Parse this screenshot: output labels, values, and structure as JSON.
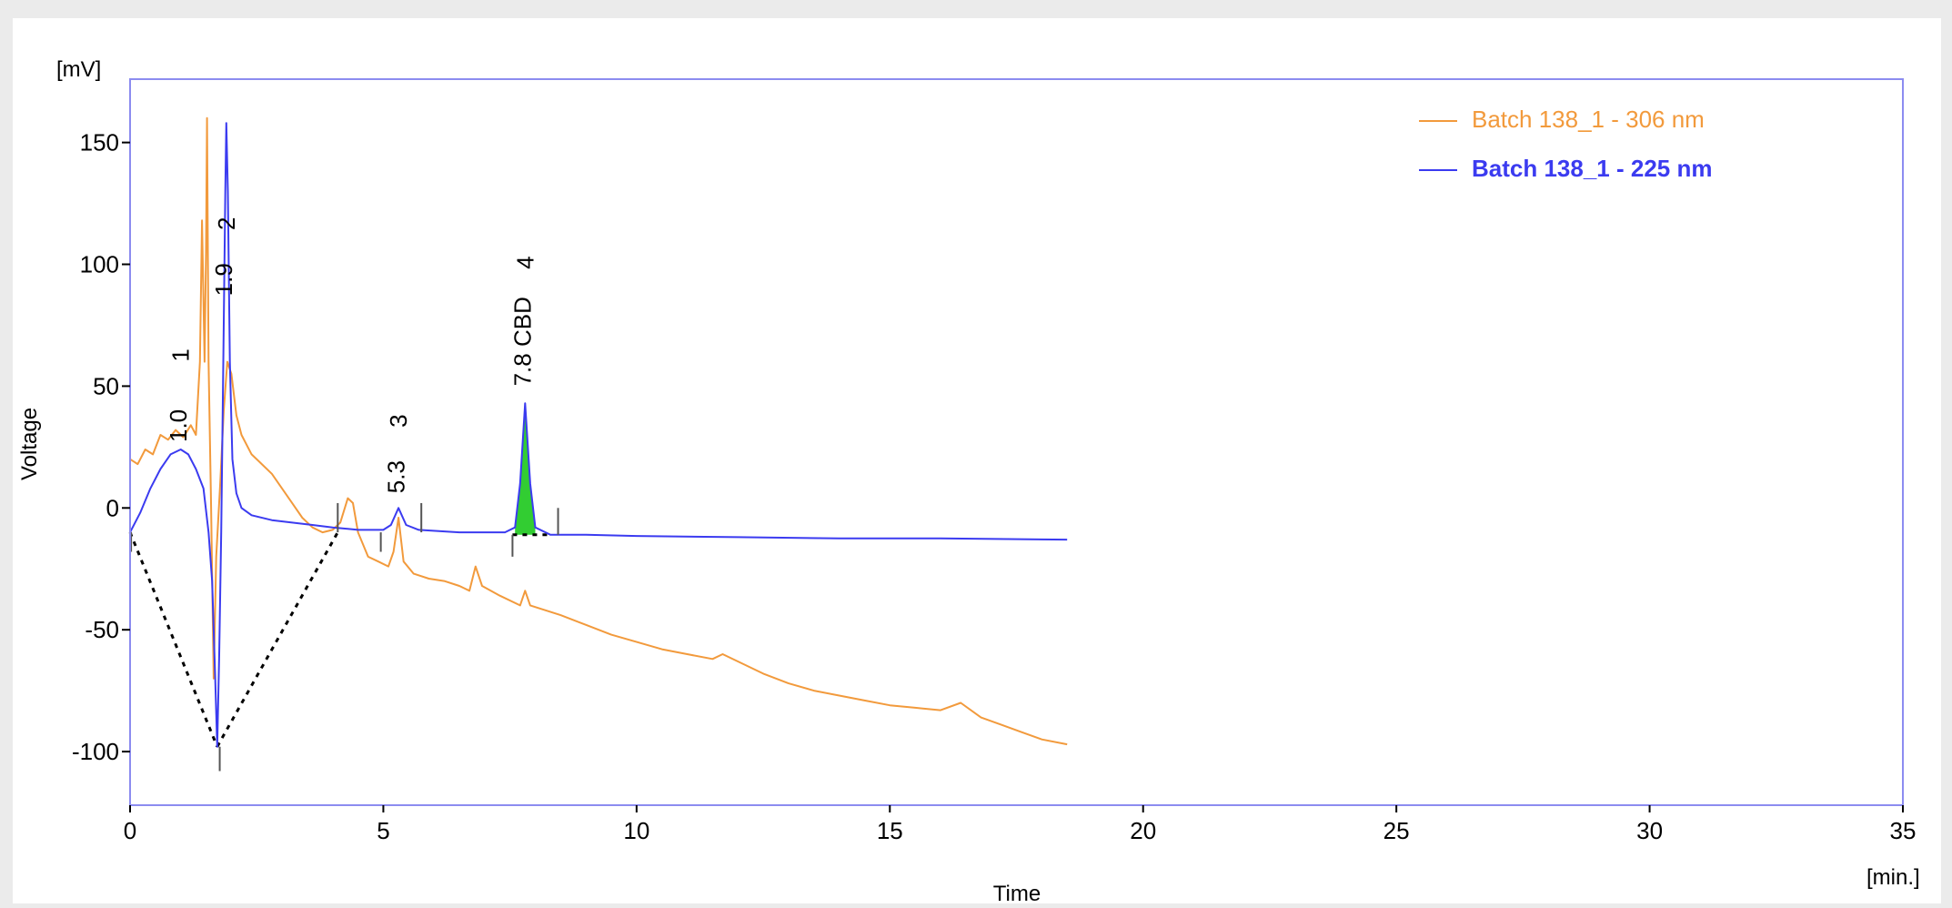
{
  "chart_data": {
    "type": "line",
    "title": "",
    "xlabel": "Time",
    "ylabel": "Voltage",
    "x_unit": "[min.]",
    "y_unit": "[mV]",
    "xlim": [
      0,
      35
    ],
    "ylim": [
      -122,
      176
    ],
    "x_ticks": [
      0,
      5,
      10,
      15,
      20,
      25,
      30,
      35
    ],
    "y_ticks": [
      -100,
      -50,
      0,
      50,
      100,
      150
    ],
    "grid": false,
    "legend_position": "top-right",
    "colors": {
      "plot_border": "#8c8cf0",
      "series_306": "#f29a3c",
      "series_225": "#3b3bf0",
      "peak_fill": "#32cd32",
      "baseline": "#000000"
    },
    "series": [
      {
        "name": "Batch 138_1 - 306 nm",
        "color": "#f29a3c",
        "points": [
          [
            0.0,
            20
          ],
          [
            0.15,
            18
          ],
          [
            0.3,
            24
          ],
          [
            0.45,
            22
          ],
          [
            0.6,
            30
          ],
          [
            0.75,
            28
          ],
          [
            0.9,
            32
          ],
          [
            1.05,
            29
          ],
          [
            1.2,
            34
          ],
          [
            1.3,
            30
          ],
          [
            1.38,
            60
          ],
          [
            1.42,
            118
          ],
          [
            1.47,
            60
          ],
          [
            1.5,
            105
          ],
          [
            1.52,
            160
          ],
          [
            1.55,
            60
          ],
          [
            1.6,
            0
          ],
          [
            1.65,
            -70
          ],
          [
            1.7,
            -20
          ],
          [
            1.78,
            10
          ],
          [
            1.85,
            40
          ],
          [
            1.92,
            60
          ],
          [
            2.0,
            55
          ],
          [
            2.1,
            38
          ],
          [
            2.2,
            30
          ],
          [
            2.4,
            22
          ],
          [
            2.6,
            18
          ],
          [
            2.8,
            14
          ],
          [
            3.0,
            8
          ],
          [
            3.2,
            2
          ],
          [
            3.4,
            -4
          ],
          [
            3.6,
            -8
          ],
          [
            3.8,
            -10
          ],
          [
            4.0,
            -9
          ],
          [
            4.15,
            -6
          ],
          [
            4.3,
            4
          ],
          [
            4.4,
            2
          ],
          [
            4.5,
            -10
          ],
          [
            4.7,
            -20
          ],
          [
            4.9,
            -22
          ],
          [
            5.1,
            -24
          ],
          [
            5.2,
            -18
          ],
          [
            5.3,
            -4
          ],
          [
            5.4,
            -22
          ],
          [
            5.6,
            -27
          ],
          [
            5.9,
            -29
          ],
          [
            6.2,
            -30
          ],
          [
            6.5,
            -32
          ],
          [
            6.7,
            -34
          ],
          [
            6.82,
            -24
          ],
          [
            6.95,
            -32
          ],
          [
            7.3,
            -36
          ],
          [
            7.7,
            -40
          ],
          [
            7.8,
            -34
          ],
          [
            7.9,
            -40
          ],
          [
            8.5,
            -44
          ],
          [
            9.0,
            -48
          ],
          [
            9.5,
            -52
          ],
          [
            10.0,
            -55
          ],
          [
            10.5,
            -58
          ],
          [
            11.0,
            -60
          ],
          [
            11.5,
            -62
          ],
          [
            11.7,
            -60
          ],
          [
            12.0,
            -63
          ],
          [
            12.5,
            -68
          ],
          [
            13.0,
            -72
          ],
          [
            13.5,
            -75
          ],
          [
            14.0,
            -77
          ],
          [
            14.5,
            -79
          ],
          [
            15.0,
            -81
          ],
          [
            15.5,
            -82
          ],
          [
            16.0,
            -83
          ],
          [
            16.4,
            -80
          ],
          [
            16.8,
            -86
          ],
          [
            17.2,
            -89
          ],
          [
            17.6,
            -92
          ],
          [
            18.0,
            -95
          ],
          [
            18.5,
            -97
          ]
        ]
      },
      {
        "name": "Batch 138_1 - 225 nm",
        "color": "#3b3bf0",
        "points": [
          [
            0.0,
            -10
          ],
          [
            0.2,
            -2
          ],
          [
            0.4,
            8
          ],
          [
            0.6,
            16
          ],
          [
            0.8,
            22
          ],
          [
            1.0,
            24
          ],
          [
            1.15,
            22
          ],
          [
            1.3,
            16
          ],
          [
            1.45,
            8
          ],
          [
            1.55,
            -10
          ],
          [
            1.62,
            -30
          ],
          [
            1.68,
            -70
          ],
          [
            1.72,
            -98
          ],
          [
            1.76,
            -60
          ],
          [
            1.8,
            -10
          ],
          [
            1.84,
            60
          ],
          [
            1.88,
            130
          ],
          [
            1.9,
            158
          ],
          [
            1.93,
            130
          ],
          [
            1.97,
            60
          ],
          [
            2.02,
            20
          ],
          [
            2.1,
            6
          ],
          [
            2.2,
            0
          ],
          [
            2.4,
            -3
          ],
          [
            2.8,
            -5
          ],
          [
            3.2,
            -6
          ],
          [
            3.6,
            -7
          ],
          [
            4.0,
            -8
          ],
          [
            4.5,
            -9
          ],
          [
            5.0,
            -9
          ],
          [
            5.15,
            -7
          ],
          [
            5.3,
            0
          ],
          [
            5.45,
            -7
          ],
          [
            5.7,
            -9
          ],
          [
            6.5,
            -10
          ],
          [
            7.4,
            -10
          ],
          [
            7.6,
            -8
          ],
          [
            7.7,
            10
          ],
          [
            7.8,
            43
          ],
          [
            7.9,
            10
          ],
          [
            8.0,
            -8
          ],
          [
            8.3,
            -11
          ],
          [
            9.0,
            -11
          ],
          [
            10.0,
            -11.5
          ],
          [
            12.0,
            -12
          ],
          [
            14.0,
            -12.5
          ],
          [
            16.0,
            -12.5
          ],
          [
            18.5,
            -13
          ]
        ]
      }
    ],
    "baselines": [
      [
        [
          0.0,
          -10
        ],
        [
          1.72,
          -98
        ]
      ],
      [
        [
          1.72,
          -98
        ],
        [
          4.1,
          -10
        ]
      ],
      [
        [
          7.55,
          -11
        ],
        [
          8.3,
          -11
        ]
      ]
    ],
    "filled_peak": {
      "series_index": 1,
      "x_from": 7.55,
      "x_to": 8.1
    },
    "markers": [
      {
        "x": 0.02,
        "y_top": -10,
        "y_bottom": -18
      },
      {
        "x": 1.77,
        "y_top": -98,
        "y_bottom": -108
      },
      {
        "x": 4.1,
        "y_top": 2,
        "y_bottom": -10
      },
      {
        "x": 4.95,
        "y_top": -10,
        "y_bottom": -18
      },
      {
        "x": 5.75,
        "y_top": 2,
        "y_bottom": -10
      },
      {
        "x": 7.55,
        "y_top": -11,
        "y_bottom": -20
      },
      {
        "x": 8.45,
        "y_top": 0,
        "y_bottom": -11
      }
    ],
    "peak_labels": [
      {
        "text": "1.0",
        "x": 0.95,
        "y": 27
      },
      {
        "text": "1",
        "x": 1.0,
        "y": 60
      },
      {
        "text": "1.9",
        "x": 1.85,
        "y": 87
      },
      {
        "text": "2",
        "x": 1.9,
        "y": 114
      },
      {
        "text": "5.3",
        "x": 5.25,
        "y": 6
      },
      {
        "text": "3",
        "x": 5.3,
        "y": 33
      },
      {
        "text": "7.8 CBD",
        "x": 7.75,
        "y": 50
      },
      {
        "text": "4",
        "x": 7.8,
        "y": 98
      }
    ]
  }
}
